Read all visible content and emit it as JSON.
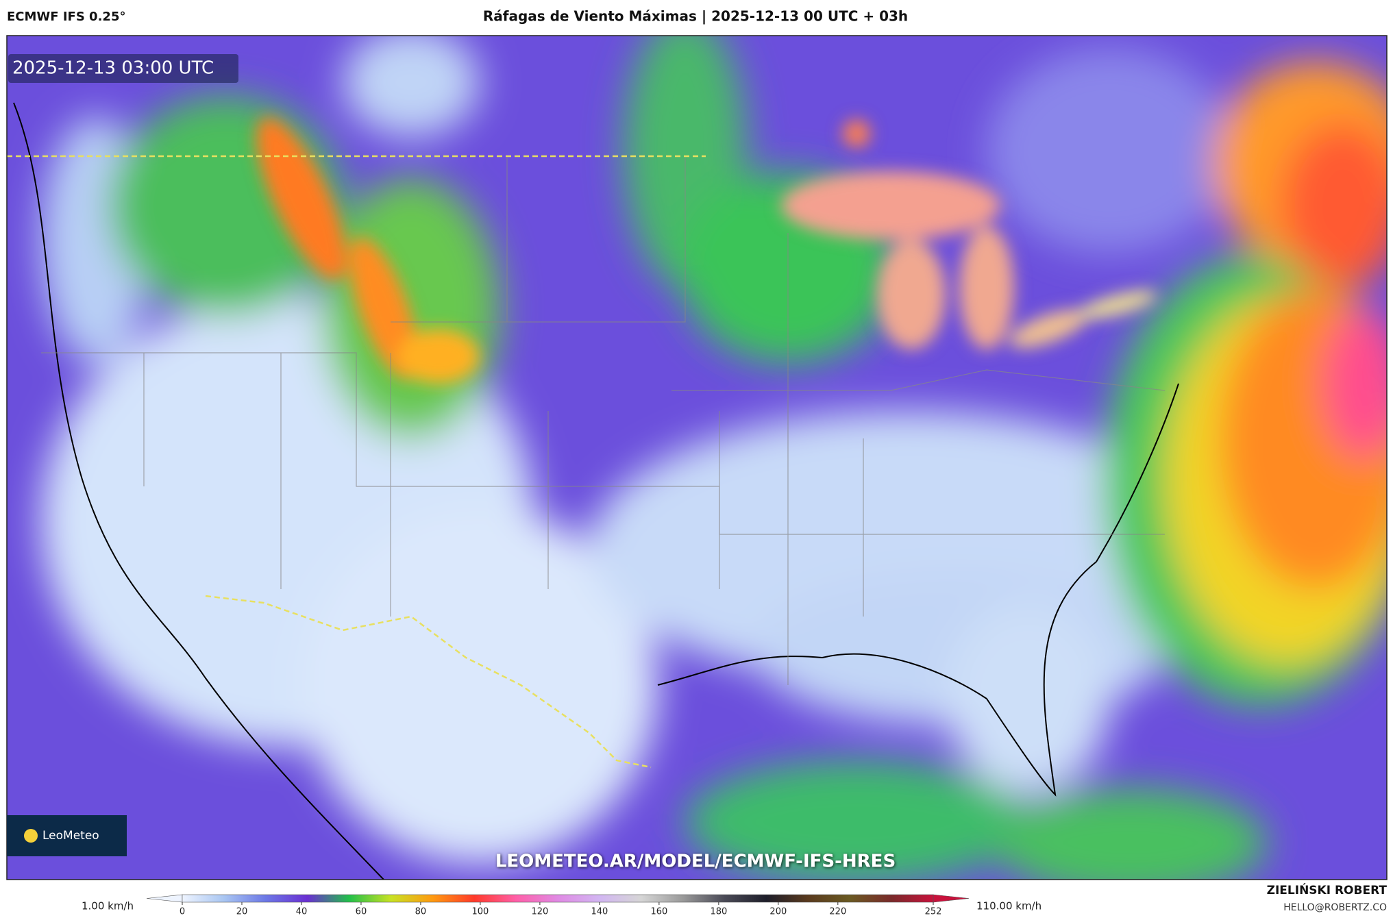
{
  "header": {
    "model": "ECMWF IFS 0.25°",
    "title": "Ráfagas de Viento Máximas | 2025-12-13 00 UTC + 03h"
  },
  "map": {
    "timestamp": "2025-12-13 03:00 UTC",
    "logo": "LeoMeteo",
    "url": "LEOMETEO.AR/MODEL/ECMWF-IFS-HRES"
  },
  "colorbar": {
    "min_label": "1.00 km/h",
    "max_label": "110.00 km/h",
    "lim": [
      0,
      252
    ],
    "ticks": [
      0,
      20,
      40,
      60,
      80,
      100,
      120,
      140,
      160,
      180,
      200,
      220,
      252
    ],
    "colors": [
      "#eef4ff",
      "#a9c6f2",
      "#6c78e6",
      "#6a2fd2",
      "#22c04a",
      "#c8e224",
      "#ff9a10",
      "#ff3a2a",
      "#ff5fa8",
      "#e08ae4",
      "#d2b6f2",
      "#d6d6d6",
      "#9a9a9a",
      "#4a4a56",
      "#1e1e2a",
      "#5a3a1e",
      "#6a5a22",
      "#7a2a2a",
      "#c8123c"
    ]
  },
  "author": {
    "name": "ZIELIŃSKI ROBERT",
    "email": "HELLO@ROBERTZ.CO"
  }
}
